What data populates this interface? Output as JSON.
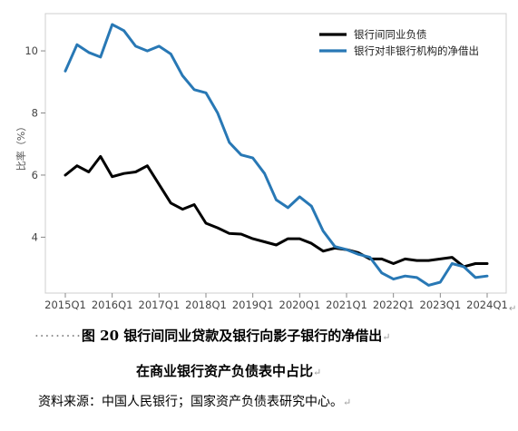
{
  "chart_data": {
    "type": "line",
    "ylabel": "比率（%）",
    "ylim": [
      2.2,
      11.2
    ],
    "yticks": [
      4,
      6,
      8,
      10
    ],
    "grid": false,
    "legend_position": "top-right",
    "categories": [
      "2015Q1",
      "2015Q2",
      "2015Q3",
      "2015Q4",
      "2016Q1",
      "2016Q2",
      "2016Q3",
      "2016Q4",
      "2017Q1",
      "2017Q2",
      "2017Q3",
      "2017Q4",
      "2018Q1",
      "2018Q2",
      "2018Q3",
      "2018Q4",
      "2019Q1",
      "2019Q2",
      "2019Q3",
      "2019Q4",
      "2020Q1",
      "2020Q2",
      "2020Q3",
      "2020Q4",
      "2021Q1",
      "2021Q2",
      "2021Q3",
      "2021Q4",
      "2022Q1",
      "2022Q2",
      "2022Q3",
      "2022Q4",
      "2023Q1",
      "2023Q2",
      "2023Q3",
      "2023Q4",
      "2024Q1"
    ],
    "x_tick_labels": [
      "2015Q1",
      "2016Q1",
      "2017Q1",
      "2018Q1",
      "2019Q1",
      "2020Q1",
      "2021Q1",
      "2022Q1",
      "2023Q1",
      "2024Q1"
    ],
    "series": [
      {
        "name": "银行间同业负债",
        "color": "#000000",
        "values": [
          6.0,
          6.3,
          6.1,
          6.6,
          5.95,
          6.05,
          6.1,
          6.3,
          5.7,
          5.1,
          4.9,
          5.05,
          4.45,
          4.3,
          4.12,
          4.1,
          3.95,
          3.85,
          3.75,
          3.95,
          3.95,
          3.8,
          3.55,
          3.65,
          3.6,
          3.5,
          3.3,
          3.3,
          3.15,
          3.3,
          3.25,
          3.25,
          3.3,
          3.35,
          3.05,
          3.15,
          3.15
        ]
      },
      {
        "name": "银行对非银行机构的净借出",
        "color": "#2878b5",
        "values": [
          9.35,
          10.2,
          9.95,
          9.8,
          10.85,
          10.65,
          10.15,
          10.0,
          10.15,
          9.9,
          9.2,
          8.75,
          8.65,
          8.0,
          7.05,
          6.65,
          6.55,
          6.05,
          5.2,
          4.95,
          5.3,
          5.0,
          4.2,
          3.7,
          3.6,
          3.45,
          3.35,
          2.85,
          2.65,
          2.75,
          2.7,
          2.45,
          2.55,
          3.15,
          3.05,
          2.7,
          2.75
        ]
      }
    ]
  },
  "caption": {
    "dots": "·········",
    "line1": "图 20  银行间同业贷款及银行向影子银行的净借出",
    "line2": "在商业银行资产负债表中占比",
    "source": "资料来源：中国人民银行；国家资产负债表研究中心。",
    "para_mark": "↵",
    "corner_mark": "↵"
  }
}
